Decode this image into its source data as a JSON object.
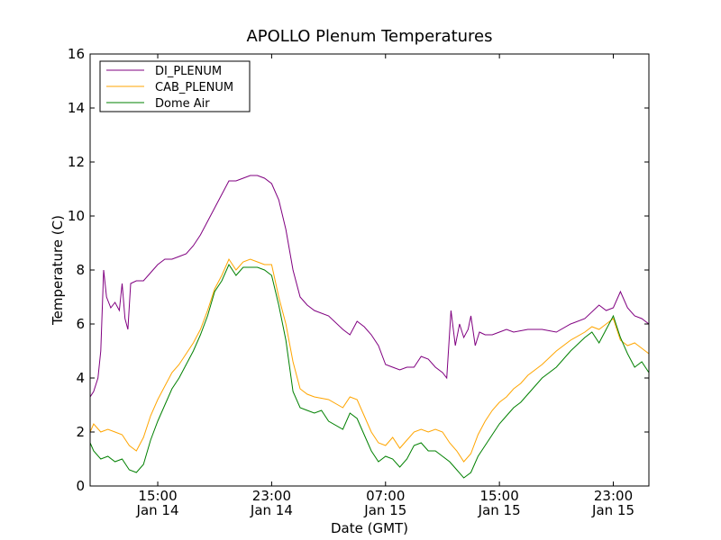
{
  "chart_data": {
    "type": "line",
    "title": "APOLLO Plenum Temperatures",
    "xlabel": "Date (GMT)",
    "ylabel": "Temperature (C)",
    "ylim": [
      0,
      16
    ],
    "xlim_hours": [
      10.25,
      49.5
    ],
    "y_ticks": [
      0,
      2,
      4,
      6,
      8,
      10,
      12,
      14,
      16
    ],
    "x_ticks": [
      {
        "hours": 15,
        "label_top": "15:00",
        "label_bottom": "Jan 14"
      },
      {
        "hours": 23,
        "label_top": "23:00",
        "label_bottom": "Jan 14"
      },
      {
        "hours": 31,
        "label_top": "07:00",
        "label_bottom": "Jan 15"
      },
      {
        "hours": 39,
        "label_top": "15:00",
        "label_bottom": "Jan 15"
      },
      {
        "hours": 47,
        "label_top": "23:00",
        "label_bottom": "Jan 15"
      }
    ],
    "x_unit_note": "x values are hours since 00:00 Jan 14 GMT",
    "legend_position": "top-left",
    "series": [
      {
        "name": "DI_PLENUM",
        "color": "#800080",
        "points": [
          [
            10.25,
            3.3
          ],
          [
            10.5,
            3.5
          ],
          [
            10.8,
            4.0
          ],
          [
            11.0,
            5.0
          ],
          [
            11.2,
            8.0
          ],
          [
            11.4,
            7.0
          ],
          [
            11.7,
            6.6
          ],
          [
            12.0,
            6.8
          ],
          [
            12.3,
            6.5
          ],
          [
            12.5,
            7.5
          ],
          [
            12.7,
            6.2
          ],
          [
            12.9,
            5.8
          ],
          [
            13.1,
            7.5
          ],
          [
            13.5,
            7.6
          ],
          [
            14.0,
            7.6
          ],
          [
            14.5,
            7.9
          ],
          [
            15.0,
            8.2
          ],
          [
            15.5,
            8.4
          ],
          [
            16.0,
            8.4
          ],
          [
            16.5,
            8.5
          ],
          [
            17.0,
            8.6
          ],
          [
            17.5,
            8.9
          ],
          [
            18.0,
            9.3
          ],
          [
            18.5,
            9.8
          ],
          [
            19.0,
            10.3
          ],
          [
            19.5,
            10.8
          ],
          [
            20.0,
            11.3
          ],
          [
            20.5,
            11.3
          ],
          [
            21.0,
            11.4
          ],
          [
            21.5,
            11.5
          ],
          [
            22.0,
            11.5
          ],
          [
            22.5,
            11.4
          ],
          [
            23.0,
            11.2
          ],
          [
            23.5,
            10.6
          ],
          [
            24.0,
            9.5
          ],
          [
            24.5,
            8.0
          ],
          [
            25.0,
            7.0
          ],
          [
            25.5,
            6.7
          ],
          [
            26.0,
            6.5
          ],
          [
            27.0,
            6.3
          ],
          [
            28.0,
            5.8
          ],
          [
            28.5,
            5.6
          ],
          [
            29.0,
            6.1
          ],
          [
            29.5,
            5.9
          ],
          [
            30.0,
            5.6
          ],
          [
            30.5,
            5.2
          ],
          [
            31.0,
            4.5
          ],
          [
            31.5,
            4.4
          ],
          [
            32.0,
            4.3
          ],
          [
            32.5,
            4.4
          ],
          [
            33.0,
            4.4
          ],
          [
            33.5,
            4.8
          ],
          [
            34.0,
            4.7
          ],
          [
            34.5,
            4.4
          ],
          [
            35.0,
            4.2
          ],
          [
            35.3,
            4.0
          ],
          [
            35.6,
            6.5
          ],
          [
            35.9,
            5.2
          ],
          [
            36.2,
            6.0
          ],
          [
            36.5,
            5.5
          ],
          [
            36.8,
            5.8
          ],
          [
            37.0,
            6.3
          ],
          [
            37.3,
            5.2
          ],
          [
            37.6,
            5.7
          ],
          [
            38.0,
            5.6
          ],
          [
            38.5,
            5.6
          ],
          [
            39.0,
            5.7
          ],
          [
            39.5,
            5.8
          ],
          [
            40.0,
            5.7
          ],
          [
            41.0,
            5.8
          ],
          [
            42.0,
            5.8
          ],
          [
            43.0,
            5.7
          ],
          [
            44.0,
            6.0
          ],
          [
            45.0,
            6.2
          ],
          [
            46.0,
            6.7
          ],
          [
            46.5,
            6.5
          ],
          [
            47.0,
            6.6
          ],
          [
            47.5,
            7.2
          ],
          [
            48.0,
            6.6
          ],
          [
            48.5,
            6.3
          ],
          [
            49.0,
            6.2
          ],
          [
            49.5,
            6.0
          ]
        ]
      },
      {
        "name": "CAB_PLENUM",
        "color": "#FFA500",
        "points": [
          [
            10.25,
            2.0
          ],
          [
            10.5,
            2.3
          ],
          [
            11.0,
            2.0
          ],
          [
            11.5,
            2.1
          ],
          [
            12.0,
            2.0
          ],
          [
            12.5,
            1.9
          ],
          [
            13.0,
            1.5
          ],
          [
            13.5,
            1.3
          ],
          [
            14.0,
            1.8
          ],
          [
            14.5,
            2.6
          ],
          [
            15.0,
            3.2
          ],
          [
            15.5,
            3.7
          ],
          [
            16.0,
            4.2
          ],
          [
            16.5,
            4.5
          ],
          [
            17.0,
            4.9
          ],
          [
            17.5,
            5.3
          ],
          [
            18.0,
            5.8
          ],
          [
            18.5,
            6.5
          ],
          [
            19.0,
            7.3
          ],
          [
            19.5,
            7.8
          ],
          [
            20.0,
            8.4
          ],
          [
            20.5,
            8.0
          ],
          [
            21.0,
            8.3
          ],
          [
            21.5,
            8.4
          ],
          [
            22.0,
            8.3
          ],
          [
            22.5,
            8.2
          ],
          [
            23.0,
            8.2
          ],
          [
            23.5,
            7.0
          ],
          [
            24.0,
            6.0
          ],
          [
            24.5,
            4.6
          ],
          [
            25.0,
            3.6
          ],
          [
            25.5,
            3.4
          ],
          [
            26.0,
            3.3
          ],
          [
            27.0,
            3.2
          ],
          [
            28.0,
            2.9
          ],
          [
            28.5,
            3.3
          ],
          [
            29.0,
            3.2
          ],
          [
            29.5,
            2.6
          ],
          [
            30.0,
            2.0
          ],
          [
            30.5,
            1.6
          ],
          [
            31.0,
            1.5
          ],
          [
            31.5,
            1.8
          ],
          [
            32.0,
            1.4
          ],
          [
            32.5,
            1.7
          ],
          [
            33.0,
            2.0
          ],
          [
            33.5,
            2.1
          ],
          [
            34.0,
            2.0
          ],
          [
            34.5,
            2.1
          ],
          [
            35.0,
            2.0
          ],
          [
            35.5,
            1.6
          ],
          [
            36.0,
            1.3
          ],
          [
            36.5,
            0.9
          ],
          [
            37.0,
            1.2
          ],
          [
            37.5,
            1.9
          ],
          [
            38.0,
            2.4
          ],
          [
            38.5,
            2.8
          ],
          [
            39.0,
            3.1
          ],
          [
            39.5,
            3.3
          ],
          [
            40.0,
            3.6
          ],
          [
            40.5,
            3.8
          ],
          [
            41.0,
            4.1
          ],
          [
            42.0,
            4.5
          ],
          [
            43.0,
            5.0
          ],
          [
            44.0,
            5.4
          ],
          [
            45.0,
            5.7
          ],
          [
            45.5,
            5.9
          ],
          [
            46.0,
            5.8
          ],
          [
            46.5,
            6.0
          ],
          [
            47.0,
            6.2
          ],
          [
            47.5,
            5.4
          ],
          [
            48.0,
            5.2
          ],
          [
            48.5,
            5.3
          ],
          [
            49.0,
            5.1
          ],
          [
            49.5,
            4.9
          ]
        ]
      },
      {
        "name": "Dome Air",
        "color": "#008000",
        "points": [
          [
            10.25,
            1.6
          ],
          [
            10.5,
            1.3
          ],
          [
            11.0,
            1.0
          ],
          [
            11.5,
            1.1
          ],
          [
            12.0,
            0.9
          ],
          [
            12.5,
            1.0
          ],
          [
            13.0,
            0.6
          ],
          [
            13.5,
            0.5
          ],
          [
            14.0,
            0.8
          ],
          [
            14.5,
            1.7
          ],
          [
            15.0,
            2.4
          ],
          [
            15.5,
            3.0
          ],
          [
            16.0,
            3.6
          ],
          [
            16.5,
            4.0
          ],
          [
            17.0,
            4.5
          ],
          [
            17.5,
            5.0
          ],
          [
            18.0,
            5.6
          ],
          [
            18.5,
            6.3
          ],
          [
            19.0,
            7.2
          ],
          [
            19.5,
            7.6
          ],
          [
            20.0,
            8.2
          ],
          [
            20.5,
            7.8
          ],
          [
            21.0,
            8.1
          ],
          [
            21.5,
            8.1
          ],
          [
            22.0,
            8.1
          ],
          [
            22.5,
            8.0
          ],
          [
            23.0,
            7.8
          ],
          [
            23.5,
            6.7
          ],
          [
            24.0,
            5.4
          ],
          [
            24.5,
            3.5
          ],
          [
            25.0,
            2.9
          ],
          [
            25.5,
            2.8
          ],
          [
            26.0,
            2.7
          ],
          [
            26.5,
            2.8
          ],
          [
            27.0,
            2.4
          ],
          [
            28.0,
            2.1
          ],
          [
            28.5,
            2.7
          ],
          [
            29.0,
            2.5
          ],
          [
            29.5,
            1.9
          ],
          [
            30.0,
            1.3
          ],
          [
            30.5,
            0.9
          ],
          [
            31.0,
            1.1
          ],
          [
            31.5,
            1.0
          ],
          [
            32.0,
            0.7
          ],
          [
            32.5,
            1.0
          ],
          [
            33.0,
            1.5
          ],
          [
            33.5,
            1.6
          ],
          [
            34.0,
            1.3
          ],
          [
            34.5,
            1.3
          ],
          [
            35.0,
            1.1
          ],
          [
            35.5,
            0.9
          ],
          [
            36.0,
            0.6
          ],
          [
            36.5,
            0.3
          ],
          [
            37.0,
            0.5
          ],
          [
            37.5,
            1.1
          ],
          [
            38.0,
            1.5
          ],
          [
            38.5,
            1.9
          ],
          [
            39.0,
            2.3
          ],
          [
            39.5,
            2.6
          ],
          [
            40.0,
            2.9
          ],
          [
            40.5,
            3.1
          ],
          [
            41.0,
            3.4
          ],
          [
            42.0,
            4.0
          ],
          [
            43.0,
            4.4
          ],
          [
            44.0,
            5.0
          ],
          [
            45.0,
            5.5
          ],
          [
            45.5,
            5.7
          ],
          [
            46.0,
            5.3
          ],
          [
            46.5,
            5.8
          ],
          [
            47.0,
            6.3
          ],
          [
            47.5,
            5.5
          ],
          [
            48.0,
            4.9
          ],
          [
            48.5,
            4.4
          ],
          [
            49.0,
            4.6
          ],
          [
            49.5,
            4.2
          ]
        ]
      }
    ]
  }
}
